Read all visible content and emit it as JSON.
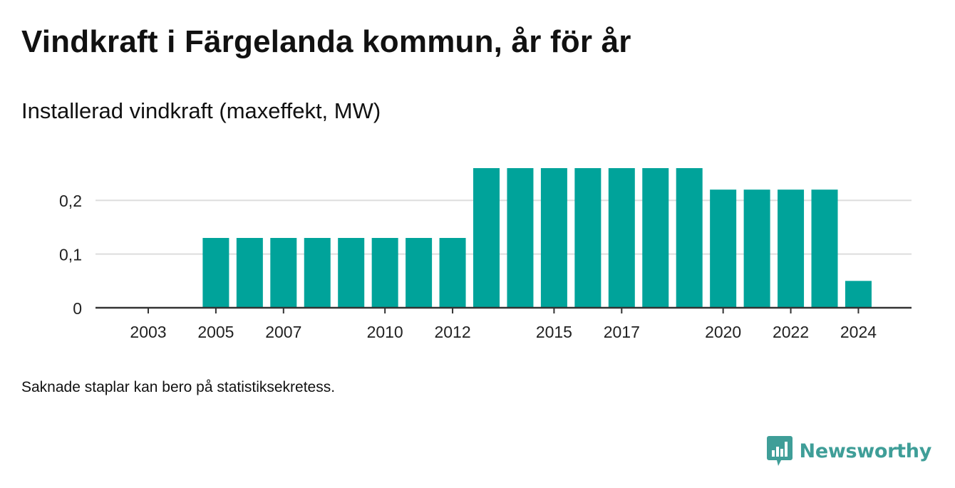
{
  "header": {
    "title": "Vindkraft i Färgelanda kommun, år för år",
    "subtitle": "Installerad vindkraft (maxeffekt, MW)"
  },
  "footer": {
    "note": "Saknade staplar kan bero på statistiksekretess.",
    "brand": "Newsworthy"
  },
  "colors": {
    "bar": "#00a39a",
    "grid": "#dddddd",
    "axis": "#333333",
    "brand": "#3f9e98"
  },
  "chart_data": {
    "type": "bar",
    "title": "Vindkraft i Färgelanda kommun, år för år",
    "ylabel": "Installerad vindkraft (maxeffekt, MW)",
    "categories": [
      "2003",
      "2004",
      "2005",
      "2006",
      "2007",
      "2008",
      "2009",
      "2010",
      "2011",
      "2012",
      "2013",
      "2014",
      "2015",
      "2016",
      "2017",
      "2018",
      "2019",
      "2020",
      "2021",
      "2022",
      "2023",
      "2024"
    ],
    "values": [
      0,
      0,
      0.13,
      0.13,
      0.13,
      0.13,
      0.13,
      0.13,
      0.13,
      0.13,
      0.26,
      0.26,
      0.26,
      0.26,
      0.26,
      0.26,
      0.26,
      0.22,
      0.22,
      0.22,
      0.22,
      0.05
    ],
    "x_tick_labels": [
      "2003",
      "2005",
      "2007",
      "2010",
      "2012",
      "2015",
      "2017",
      "2020",
      "2022",
      "2024"
    ],
    "y_ticks": [
      0,
      0.1,
      0.2
    ],
    "y_tick_labels": [
      "0",
      "0,1",
      "0,2"
    ],
    "ylim": [
      0,
      0.26
    ],
    "grid": true,
    "legend": "none"
  }
}
